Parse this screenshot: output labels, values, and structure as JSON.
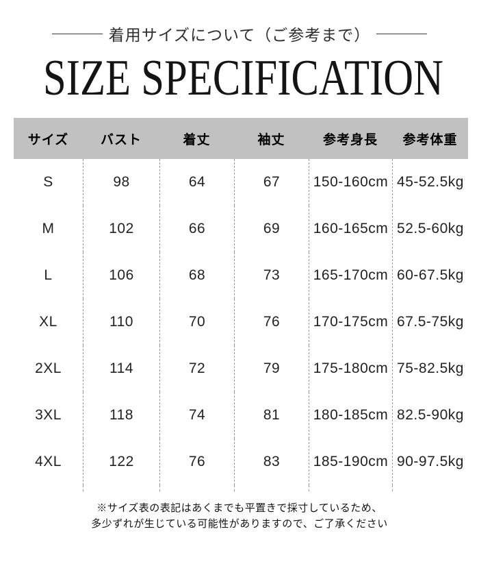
{
  "page": {
    "heading_jp": "着用サイズについて（ご参考まで）",
    "title": "SIZE SPECIFICATION"
  },
  "table": {
    "headers": [
      "サイズ",
      "バスト",
      "着丈",
      "袖丈",
      "参考身長",
      "参考体重"
    ],
    "rows": [
      [
        "S",
        "98",
        "64",
        "67",
        "150-160cm",
        "45-52.5kg"
      ],
      [
        "M",
        "102",
        "66",
        "69",
        "160-165cm",
        "52.5-60kg"
      ],
      [
        "L",
        "106",
        "68",
        "73",
        "165-170cm",
        "60-67.5kg"
      ],
      [
        "XL",
        "110",
        "70",
        "76",
        "170-175cm",
        "67.5-75kg"
      ],
      [
        "2XL",
        "114",
        "72",
        "79",
        "175-180cm",
        "75-82.5kg"
      ],
      [
        "3XL",
        "118",
        "74",
        "81",
        "180-185cm",
        "82.5-90kg"
      ],
      [
        "4XL",
        "122",
        "76",
        "83",
        "185-190cm",
        "90-97.5kg"
      ]
    ]
  },
  "note": {
    "line1": "※サイズ表の表記はあくまでも平置きで採寸しているため、",
    "line2": "多少ずれが生じている可能性がありますので、ご了承ください"
  },
  "colors": {
    "header_bg": "#c1c1c1",
    "separator": "#9a9a9a",
    "rule": "#3a3a3a",
    "text": "#1a1a1a"
  }
}
